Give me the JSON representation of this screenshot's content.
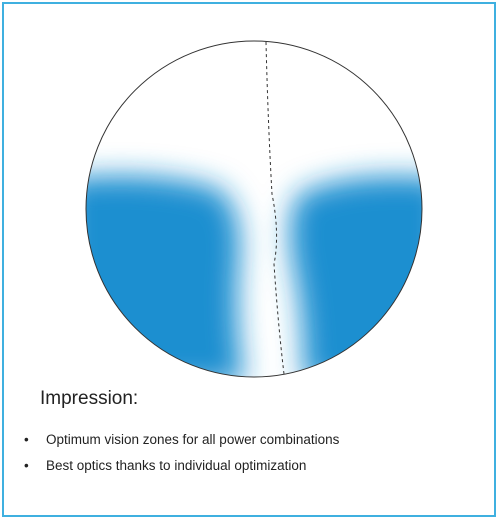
{
  "heading": "Impression:",
  "bullets": [
    "Optimum vision zones for all power combinations",
    "Best optics thanks to individual optimization"
  ]
}
